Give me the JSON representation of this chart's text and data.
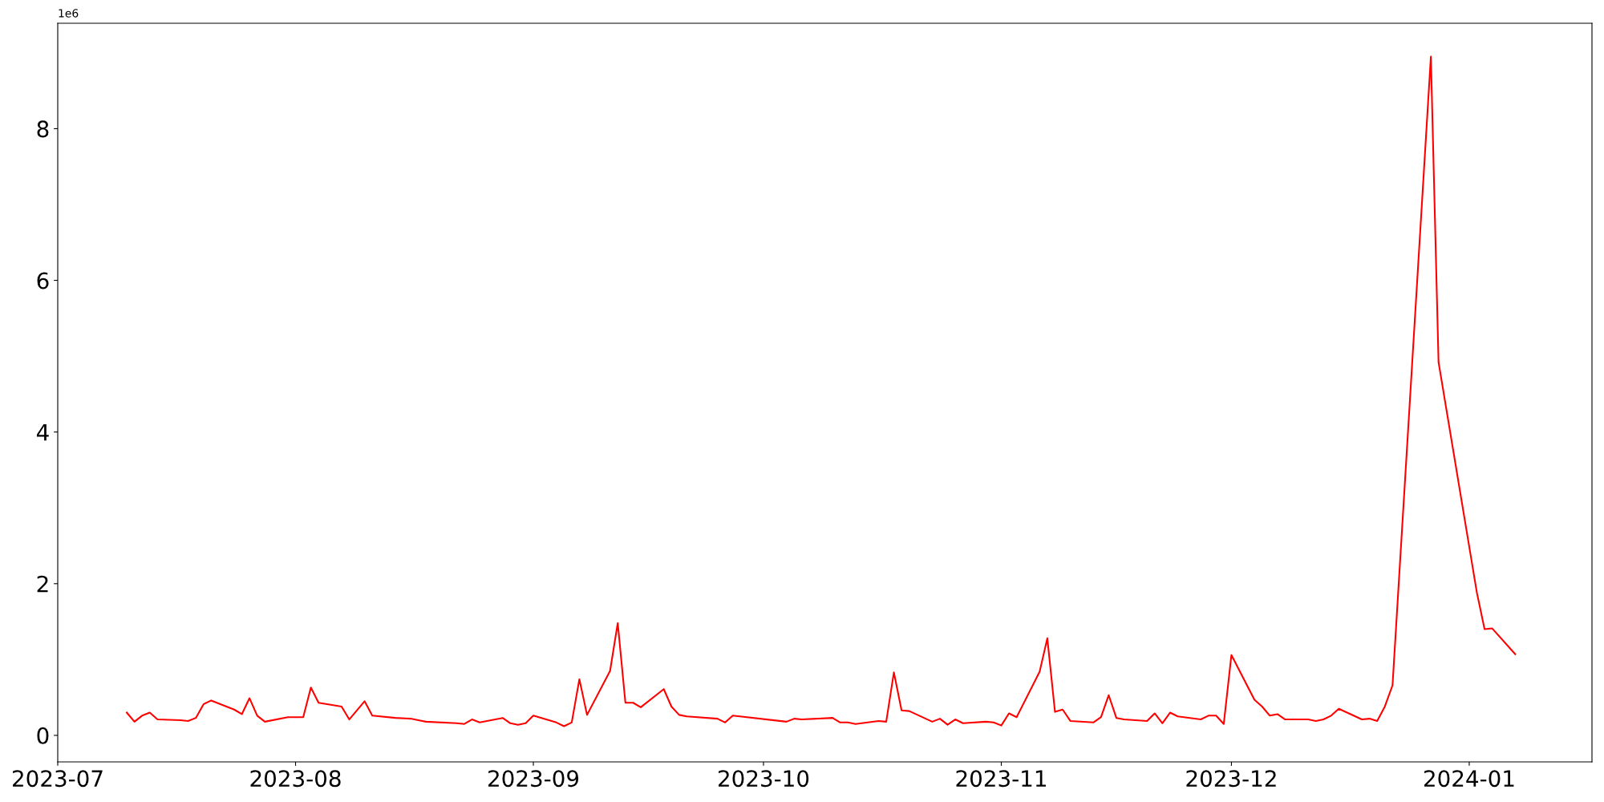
{
  "chart_data": {
    "type": "line",
    "x": [
      "2023-07-10",
      "2023-07-11",
      "2023-07-12",
      "2023-07-13",
      "2023-07-14",
      "2023-07-17",
      "2023-07-18",
      "2023-07-19",
      "2023-07-20",
      "2023-07-21",
      "2023-07-24",
      "2023-07-25",
      "2023-07-26",
      "2023-07-27",
      "2023-07-28",
      "2023-07-31",
      "2023-08-02",
      "2023-08-03",
      "2023-08-04",
      "2023-08-07",
      "2023-08-08",
      "2023-08-10",
      "2023-08-11",
      "2023-08-14",
      "2023-08-16",
      "2023-08-17",
      "2023-08-18",
      "2023-08-22",
      "2023-08-23",
      "2023-08-24",
      "2023-08-25",
      "2023-08-28",
      "2023-08-29",
      "2023-08-30",
      "2023-08-31",
      "2023-09-01",
      "2023-09-04",
      "2023-09-05",
      "2023-09-06",
      "2023-09-07",
      "2023-09-08",
      "2023-09-11",
      "2023-09-12",
      "2023-09-13",
      "2023-09-14",
      "2023-09-15",
      "2023-09-18",
      "2023-09-19",
      "2023-09-20",
      "2023-09-21",
      "2023-09-25",
      "2023-09-26",
      "2023-09-27",
      "2023-10-04",
      "2023-10-05",
      "2023-10-06",
      "2023-10-10",
      "2023-10-11",
      "2023-10-12",
      "2023-10-13",
      "2023-10-16",
      "2023-10-17",
      "2023-10-18",
      "2023-10-19",
      "2023-10-20",
      "2023-10-23",
      "2023-10-24",
      "2023-10-25",
      "2023-10-26",
      "2023-10-27",
      "2023-10-30",
      "2023-10-31",
      "2023-11-01",
      "2023-11-02",
      "2023-11-03",
      "2023-11-06",
      "2023-11-07",
      "2023-11-08",
      "2023-11-09",
      "2023-11-10",
      "2023-11-13",
      "2023-11-14",
      "2023-11-15",
      "2023-11-16",
      "2023-11-17",
      "2023-11-20",
      "2023-11-21",
      "2023-11-22",
      "2023-11-23",
      "2023-11-24",
      "2023-11-27",
      "2023-11-28",
      "2023-11-29",
      "2023-11-30",
      "2023-12-01",
      "2023-12-04",
      "2023-12-05",
      "2023-12-06",
      "2023-12-07",
      "2023-12-08",
      "2023-12-11",
      "2023-12-12",
      "2023-12-13",
      "2023-12-14",
      "2023-12-15",
      "2023-12-18",
      "2023-12-19",
      "2023-12-20",
      "2023-12-21",
      "2023-12-22",
      "2023-12-27",
      "2023-12-28",
      "2024-01-02",
      "2024-01-03",
      "2024-01-04",
      "2024-01-07"
    ],
    "series": [
      {
        "color": "#ff0000",
        "values": [
          0.3,
          0.18,
          0.26,
          0.3,
          0.21,
          0.2,
          0.19,
          0.23,
          0.41,
          0.46,
          0.34,
          0.28,
          0.49,
          0.26,
          0.18,
          0.24,
          0.24,
          0.63,
          0.43,
          0.38,
          0.21,
          0.45,
          0.26,
          0.23,
          0.22,
          0.2,
          0.18,
          0.16,
          0.15,
          0.21,
          0.17,
          0.23,
          0.16,
          0.14,
          0.16,
          0.26,
          0.17,
          0.12,
          0.17,
          0.74,
          0.27,
          0.85,
          1.48,
          0.43,
          0.43,
          0.37,
          0.61,
          0.38,
          0.27,
          0.25,
          0.22,
          0.17,
          0.26,
          0.18,
          0.22,
          0.21,
          0.23,
          0.17,
          0.17,
          0.15,
          0.19,
          0.18,
          0.83,
          0.33,
          0.32,
          0.18,
          0.22,
          0.14,
          0.21,
          0.16,
          0.18,
          0.17,
          0.13,
          0.29,
          0.24,
          0.84,
          1.28,
          0.31,
          0.34,
          0.19,
          0.17,
          0.24,
          0.53,
          0.23,
          0.21,
          0.19,
          0.29,
          0.16,
          0.3,
          0.25,
          0.21,
          0.26,
          0.26,
          0.15,
          1.06,
          0.47,
          0.38,
          0.26,
          0.28,
          0.21,
          0.21,
          0.19,
          0.21,
          0.26,
          0.35,
          0.21,
          0.22,
          0.19,
          0.38,
          0.66,
          8.95,
          4.92,
          1.88,
          1.4,
          1.41,
          1.07
        ]
      }
    ],
    "xlim": [
      "2023-07-01",
      "2024-01-17"
    ],
    "xticks": [
      {
        "value": "2023-07-01",
        "label": "2023-07"
      },
      {
        "value": "2023-08-01",
        "label": "2023-08"
      },
      {
        "value": "2023-09-01",
        "label": "2023-09"
      },
      {
        "value": "2023-10-01",
        "label": "2023-10"
      },
      {
        "value": "2023-11-01",
        "label": "2023-11"
      },
      {
        "value": "2023-12-01",
        "label": "2023-12"
      },
      {
        "value": "2024-01-01",
        "label": "2024-01"
      }
    ],
    "ylim": [
      -0.35,
      9.39
    ],
    "yticks": [
      0,
      2,
      4,
      6,
      8
    ],
    "annotations": [
      "1e6"
    ],
    "grid": false,
    "legend": false,
    "marker": "none",
    "line_style": "solid"
  }
}
